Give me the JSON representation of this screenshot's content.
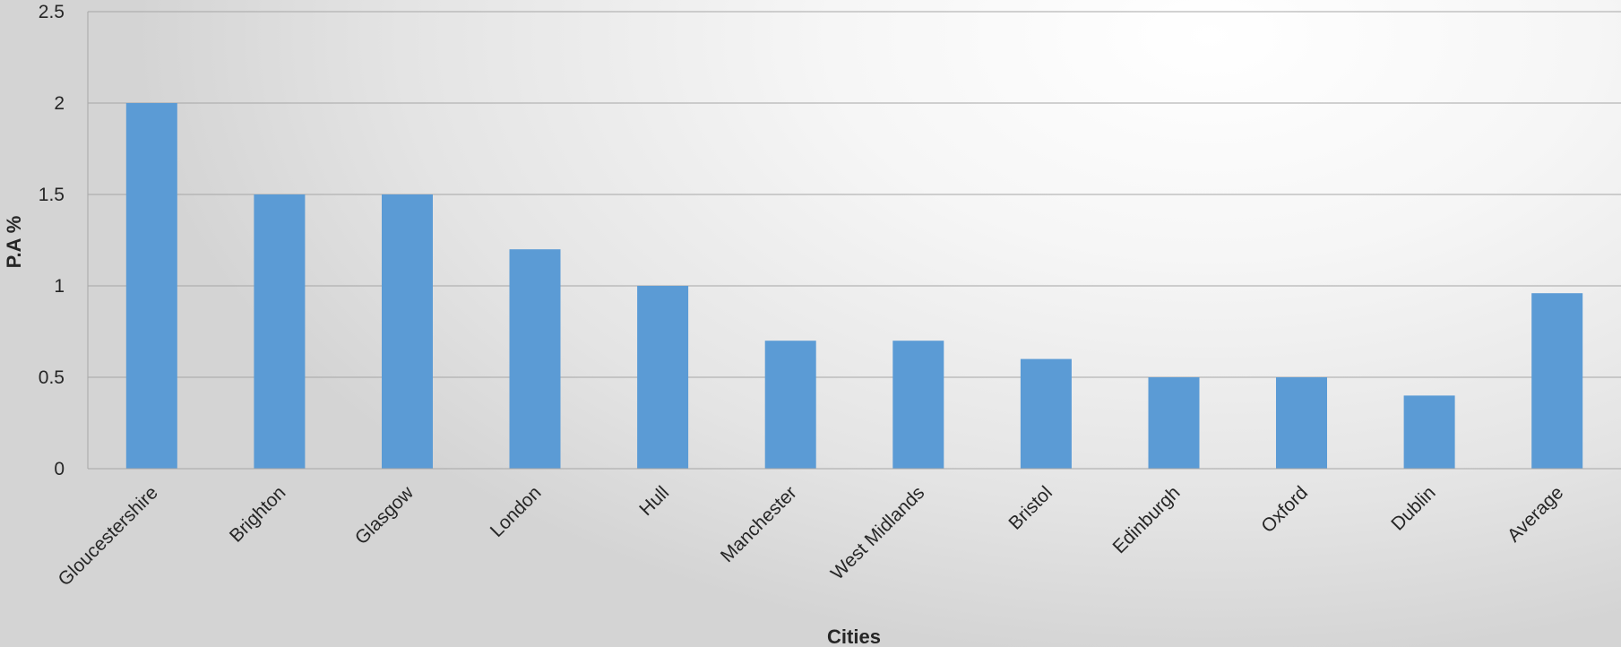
{
  "chart_data": {
    "type": "bar",
    "title": "",
    "xlabel": "Cities",
    "ylabel": "P.A %",
    "categories": [
      "Gloucestershire",
      "Brighton",
      "Glasgow",
      "London",
      "Hull",
      "Manchester",
      "West Midlands",
      "Bristol",
      "Edinburgh",
      "Oxford",
      "Dublin",
      "Average"
    ],
    "values": [
      2,
      1.5,
      1.5,
      1.2,
      1,
      0.7,
      0.7,
      0.6,
      0.5,
      0.5,
      0.4,
      0.96
    ],
    "ylim": [
      0,
      2.5
    ],
    "yticks": [
      "0",
      "0.5",
      "1",
      "1.5",
      "2",
      "2.5"
    ],
    "grid": true,
    "legend": "none",
    "colors": {
      "bar": "#5b9bd5",
      "grid": "#a6a6a6",
      "text": "#262626"
    }
  }
}
